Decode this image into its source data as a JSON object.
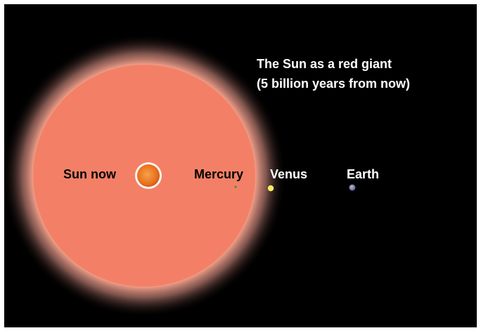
{
  "caption": {
    "line1": "The Sun as a red giant",
    "line2": "(5 billion years from now)"
  },
  "bodies": [
    {
      "label": "Sun now"
    },
    {
      "label": "Mercury"
    },
    {
      "label": "Venus"
    },
    {
      "label": "Earth"
    }
  ]
}
